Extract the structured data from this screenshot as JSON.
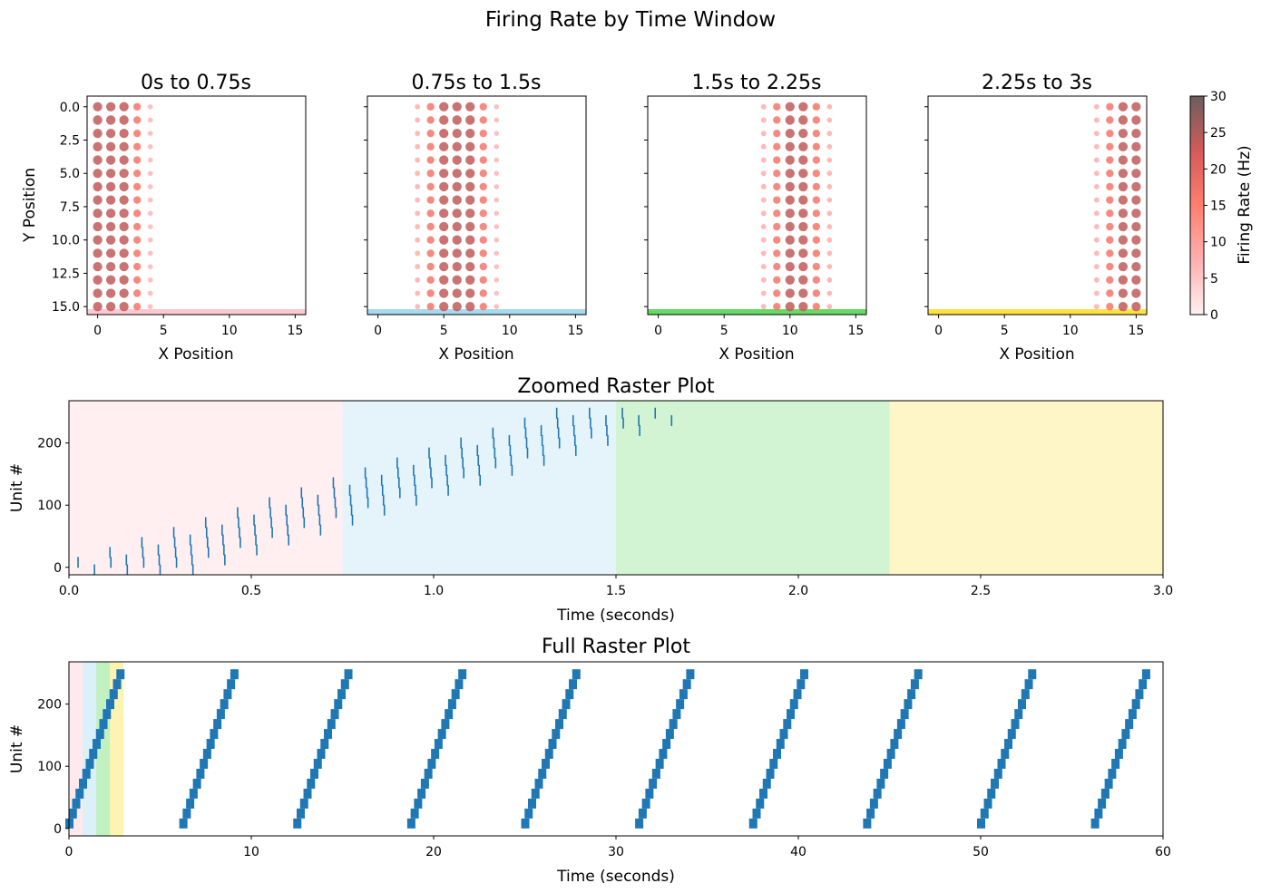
{
  "figure": {
    "suptitle": "Firing Rate by Time Window"
  },
  "chart_data": [
    {
      "type": "scatter",
      "title": "0s to 0.75s",
      "xlabel": "X Position",
      "ylabel": "Y Position",
      "xlim": [
        -0.8,
        15.8
      ],
      "ylim": [
        15.6,
        -0.8
      ],
      "xticks": [
        0,
        5,
        10,
        15
      ],
      "yticks": [
        0.0,
        2.5,
        5.0,
        7.5,
        10.0,
        12.5,
        15.0
      ],
      "ytick_labels": [
        "0.0",
        "2.5",
        "5.0",
        "7.5",
        "10.0",
        "12.5",
        "15.0"
      ],
      "active_columns": [
        0,
        1,
        2,
        3,
        4
      ],
      "column_rates_hz": [
        24,
        24,
        24,
        17,
        7
      ],
      "rows": [
        0,
        15
      ],
      "window_color": "#ffb6c1"
    },
    {
      "type": "scatter",
      "title": "0.75s to 1.5s",
      "xlabel": "X Position",
      "ylabel": "",
      "xlim": [
        -0.8,
        15.8
      ],
      "ylim": [
        15.6,
        -0.8
      ],
      "xticks": [
        0,
        5,
        10,
        15
      ],
      "active_columns": [
        3,
        4,
        5,
        6,
        7,
        8,
        9
      ],
      "column_rates_hz": [
        8,
        17,
        24,
        24,
        24,
        17,
        7
      ],
      "rows": [
        0,
        15
      ],
      "window_color": "#87ceeb"
    },
    {
      "type": "scatter",
      "title": "1.5s to 2.25s",
      "xlabel": "X Position",
      "ylabel": "",
      "xlim": [
        -0.8,
        15.8
      ],
      "ylim": [
        15.6,
        -0.8
      ],
      "xticks": [
        0,
        5,
        10,
        15
      ],
      "active_columns": [
        8,
        9,
        10,
        11,
        12,
        13
      ],
      "column_rates_hz": [
        8,
        17,
        24,
        24,
        17,
        8
      ],
      "rows": [
        0,
        15
      ],
      "window_color": "#32cd32"
    },
    {
      "type": "scatter",
      "title": "2.25s to 3s",
      "xlabel": "X Position",
      "ylabel": "",
      "xlim": [
        -0.8,
        15.8
      ],
      "ylim": [
        15.6,
        -0.8
      ],
      "xticks": [
        0,
        5,
        10,
        15
      ],
      "active_columns": [
        12,
        13,
        14,
        15
      ],
      "column_rates_hz": [
        8,
        17,
        24,
        24
      ],
      "rows": [
        0,
        15
      ],
      "window_color": "#ffd700"
    },
    {
      "type": "colorbar",
      "label": "Firing Rate (Hz)",
      "range": [
        0,
        30
      ],
      "ticks": [
        0,
        5,
        10,
        15,
        20,
        25,
        30
      ],
      "colors": [
        "#fff0f0",
        "#ffb0b0",
        "#ff7f6e",
        "#d45a5a",
        "#6b5e5e"
      ]
    },
    {
      "type": "scatter",
      "title": "Zoomed Raster Plot",
      "xlabel": "Time (seconds)",
      "ylabel": "Unit #",
      "xlim": [
        0,
        3
      ],
      "ylim": [
        -12,
        268
      ],
      "xticks": [
        0,
        0.5,
        1,
        1.5,
        2,
        2.5,
        3
      ],
      "xtick_labels": [
        "0.0",
        "0.5",
        "1.0",
        "1.5",
        "2.0",
        "2.5",
        "3.0"
      ],
      "yticks": [
        0,
        100,
        200
      ],
      "windows": [
        {
          "start": 0,
          "end": 0.75,
          "color": "#ffb6c1"
        },
        {
          "start": 0.75,
          "end": 1.5,
          "color": "#87ceeb"
        },
        {
          "start": 1.5,
          "end": 2.25,
          "color": "#32cd32"
        },
        {
          "start": 2.25,
          "end": 3.0,
          "color": "#ffd700"
        }
      ],
      "units": 256,
      "group_size": 16,
      "group_onset_s": 0.175,
      "spike_interval_s": 0.045,
      "spikes_per_group": 8,
      "spike_color": "#1f77b4"
    },
    {
      "type": "scatter",
      "title": "Full Raster Plot",
      "xlabel": "Time (seconds)",
      "ylabel": "Unit #",
      "xlim": [
        0,
        60
      ],
      "ylim": [
        -12,
        268
      ],
      "xticks": [
        0,
        10,
        20,
        30,
        40,
        50,
        60
      ],
      "yticks": [
        0,
        100,
        200
      ],
      "windows": [
        {
          "start": 0,
          "end": 0.75,
          "color": "#ffb6c1"
        },
        {
          "start": 0.75,
          "end": 1.5,
          "color": "#87ceeb"
        },
        {
          "start": 1.5,
          "end": 2.25,
          "color": "#32cd32"
        },
        {
          "start": 2.25,
          "end": 3.0,
          "color": "#ffd700"
        }
      ],
      "sweep_starts_s": [
        0,
        6.25,
        12.5,
        18.75,
        25,
        31.25,
        37.5,
        43.75,
        50,
        56.25
      ],
      "sweep_duration_s": 2.8,
      "units": 256,
      "spike_color": "#1f77b4"
    }
  ]
}
